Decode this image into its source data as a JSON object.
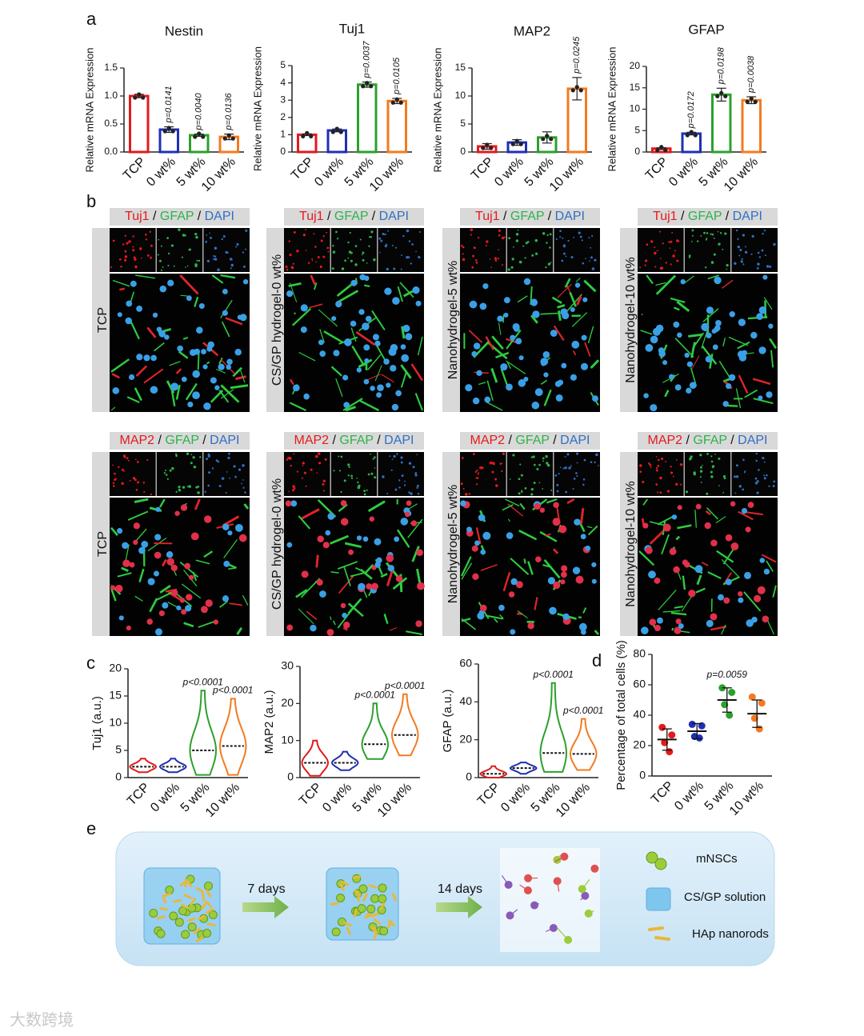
{
  "panel_labels": [
    "a",
    "b",
    "c",
    "d",
    "e"
  ],
  "chart_data": [
    {
      "type": "bar",
      "title": "Nestin",
      "y_label": "Relative mRNA Expression",
      "categories": [
        "TCP",
        "0 wt%",
        "5 wt%",
        "10 wt%"
      ],
      "colors": [
        "#e31a1c",
        "#1f2fb4",
        "#2ca02c",
        "#f47a20"
      ],
      "values": [
        1.0,
        0.4,
        0.3,
        0.27
      ],
      "errors": [
        0.03,
        0.05,
        0.02,
        0.05
      ],
      "annotations": [
        null,
        "p=0.0141",
        "p=0.0040",
        "p=0.0136"
      ],
      "ylim": [
        0,
        1.5
      ],
      "yticks": [
        {
          "value": 0,
          "label": "0.0"
        },
        0.5,
        {
          "value": 1,
          "label": "1.0"
        },
        1.5
      ]
    },
    {
      "type": "bar",
      "title": "Tuj1",
      "y_label": "Relative mRNA Expression",
      "categories": [
        "TCP",
        "0 wt%",
        "5 wt%",
        "10 wt%"
      ],
      "colors": [
        "#e31a1c",
        "#1f2fb4",
        "#2ca02c",
        "#f47a20"
      ],
      "values": [
        1.0,
        1.25,
        3.9,
        2.95
      ],
      "errors": [
        0.05,
        0.08,
        0.15,
        0.15
      ],
      "annotations": [
        null,
        null,
        "p=0.0037",
        "p=0.0105"
      ],
      "ylim": [
        0,
        5
      ],
      "yticks": [
        0,
        1,
        2,
        3,
        4,
        5
      ]
    },
    {
      "type": "bar",
      "title": "MAP2",
      "y_label": "Relative mRNA Expression",
      "categories": [
        "TCP",
        "0 wt%",
        "5 wt%",
        "10 wt%"
      ],
      "colors": [
        "#e31a1c",
        "#1f2fb4",
        "#2ca02c",
        "#f47a20"
      ],
      "values": [
        1.0,
        1.7,
        2.6,
        11.3
      ],
      "errors": [
        0.5,
        0.5,
        1.0,
        2.0
      ],
      "annotations": [
        null,
        null,
        null,
        "p=0.0245"
      ],
      "ylim": [
        0,
        15
      ],
      "yticks": [
        0,
        5,
        10,
        15
      ]
    },
    {
      "type": "bar",
      "title": "GFAP",
      "y_label": "Relative mRNA Expression",
      "categories": [
        "TCP",
        "0 wt%",
        "5 wt%",
        "10 wt%"
      ],
      "colors": [
        "#e31a1c",
        "#1f2fb4",
        "#2ca02c",
        "#f47a20"
      ],
      "values": [
        0.8,
        4.3,
        13.4,
        12.1
      ],
      "errors": [
        0.2,
        0.3,
        1.5,
        0.8
      ],
      "annotations": [
        null,
        "p=0.0172",
        "p=0.0198",
        "p=0.0038"
      ],
      "ylim": [
        0,
        20
      ],
      "yticks": [
        0,
        5,
        10,
        15,
        20
      ]
    },
    {
      "type": "violin",
      "y_label": "Tuj1 (a.u.)",
      "categories": [
        "TCP",
        "0 wt%",
        "5 wt%",
        "10 wt%"
      ],
      "colors": [
        "#e31a1c",
        "#1f2fb4",
        "#2ca02c",
        "#f47a20"
      ],
      "medians": [
        2,
        2,
        5,
        5.8
      ],
      "mins": [
        1,
        1,
        0.5,
        0.5
      ],
      "maxs": [
        3.5,
        3.5,
        16,
        14.5
      ],
      "annotations": [
        null,
        null,
        "p<0.0001",
        "p<0.0001"
      ],
      "ylim": [
        0,
        20
      ],
      "yticks": [
        0,
        5,
        10,
        15,
        20
      ]
    },
    {
      "type": "violin",
      "y_label": "MAP2 (a.u.)",
      "categories": [
        "TCP",
        "0 wt%",
        "5 wt%",
        "10 wt%"
      ],
      "colors": [
        "#e31a1c",
        "#1f2fb4",
        "#2ca02c",
        "#f47a20"
      ],
      "medians": [
        4,
        4,
        9,
        11.5
      ],
      "mins": [
        0.5,
        2,
        5,
        6
      ],
      "maxs": [
        10,
        7,
        20,
        22.5
      ],
      "annotations": [
        null,
        null,
        "p<0.0001",
        "p<0.0001"
      ],
      "ylim": [
        0,
        30
      ],
      "yticks": [
        0,
        10,
        20,
        30
      ]
    },
    {
      "type": "violin",
      "y_label": "GFAP (a.u.)",
      "categories": [
        "TCP",
        "0 wt%",
        "5 wt%",
        "10 wt%"
      ],
      "colors": [
        "#e31a1c",
        "#1f2fb4",
        "#2ca02c",
        "#f47a20"
      ],
      "medians": [
        2,
        5,
        13,
        12.5
      ],
      "mins": [
        0,
        2,
        3,
        4
      ],
      "maxs": [
        6,
        8,
        50,
        31
      ],
      "annotations": [
        null,
        null,
        "p<0.0001",
        "p<0.0001"
      ],
      "ylim": [
        0,
        60
      ],
      "yticks": [
        0,
        20,
        40,
        60
      ]
    },
    {
      "type": "dot",
      "y_label": "Percentage of total cells (%)",
      "categories": [
        "TCP",
        "0 wt%",
        "5 wt%",
        "10 wt%"
      ],
      "colors": [
        "#e31a1c",
        "#1f2fb4",
        "#2ca02c",
        "#f47a20"
      ],
      "points": [
        [
          32,
          27,
          22,
          16
        ],
        [
          34,
          33,
          26,
          25
        ],
        [
          58,
          55,
          47,
          40
        ],
        [
          52,
          48,
          38,
          31
        ]
      ],
      "means": [
        24,
        29.5,
        50,
        41
      ],
      "sds": [
        7,
        5,
        8,
        9
      ],
      "annotations": [
        null,
        null,
        "p=0.0059",
        null
      ],
      "ylim": [
        0,
        80
      ],
      "yticks": [
        0,
        20,
        40,
        60,
        80
      ]
    }
  ],
  "panel_b": {
    "row_stains": [
      [
        "Tuj1",
        "GFAP",
        "DAPI"
      ],
      [
        "MAP2",
        "GFAP",
        "DAPI"
      ]
    ],
    "separator": "/",
    "stain_colors": [
      "#e8191c",
      "#2db34a",
      "#2f6fc4"
    ],
    "conditions": [
      "TCP",
      "CS/GP hydrogel-0 wt%",
      "Nanohydrogel-5 wt%",
      "Nanohydrogel-10 wt%"
    ]
  },
  "panel_e": {
    "steps": [
      "7 days",
      "14 days"
    ],
    "legend": [
      "mNSCs",
      "CS/GP solution",
      "HAp nanorods"
    ]
  },
  "watermark": "大数跨境"
}
